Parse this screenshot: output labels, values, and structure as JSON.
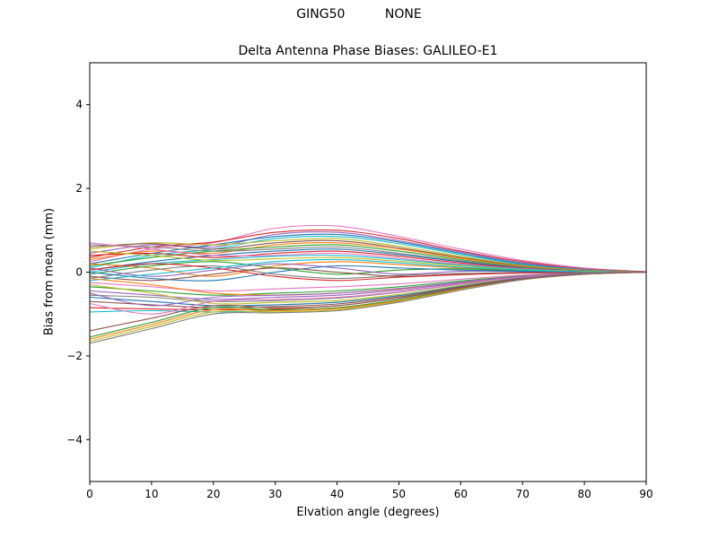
{
  "chart_data": {
    "type": "line",
    "title": "GING50          NONE",
    "subtitle": "Delta Antenna Phase Biases: GALILEO-E1",
    "xlabel": "Elvation angle (degrees)",
    "ylabel": "Bias from mean (mm)",
    "xlim": [
      0,
      90
    ],
    "ylim": [
      -5,
      5
    ],
    "x_ticks": [
      0,
      10,
      20,
      30,
      40,
      50,
      60,
      70,
      80,
      90
    ],
    "y_ticks": [
      -4,
      -2,
      0,
      2,
      4
    ],
    "grid": false,
    "legend": "none",
    "x": [
      0,
      10,
      20,
      30,
      40,
      50,
      60,
      70,
      80,
      90
    ],
    "series": [
      {
        "color": "#e377c2",
        "values": [
          0.25,
          0.55,
          0.7,
          1.05,
          1.1,
          0.85,
          0.55,
          0.28,
          0.1,
          0.01
        ]
      },
      {
        "color": "#d62728",
        "values": [
          0.35,
          0.6,
          0.72,
          0.95,
          1.0,
          0.8,
          0.5,
          0.25,
          0.08,
          0.01
        ]
      },
      {
        "color": "#9467bd",
        "values": [
          0.45,
          0.65,
          0.6,
          0.9,
          0.95,
          0.75,
          0.48,
          0.22,
          0.07,
          0.0
        ]
      },
      {
        "color": "#1f77b4",
        "values": [
          0.2,
          0.45,
          0.65,
          0.85,
          0.9,
          0.72,
          0.45,
          0.2,
          0.06,
          0.0
        ]
      },
      {
        "color": "#17becf",
        "values": [
          0.1,
          0.4,
          0.55,
          0.8,
          0.85,
          0.68,
          0.42,
          0.18,
          0.05,
          0.0
        ]
      },
      {
        "color": "#bcbd22",
        "values": [
          0.55,
          0.7,
          0.65,
          0.75,
          0.8,
          0.62,
          0.38,
          0.16,
          0.05,
          0.0
        ]
      },
      {
        "color": "#8c564b",
        "values": [
          0.6,
          0.68,
          0.55,
          0.7,
          0.75,
          0.58,
          0.35,
          0.15,
          0.04,
          0.0
        ]
      },
      {
        "color": "#ff7f0e",
        "values": [
          0.3,
          0.5,
          0.45,
          0.65,
          0.7,
          0.55,
          0.33,
          0.14,
          0.04,
          0.0
        ]
      },
      {
        "color": "#2ca02c",
        "values": [
          0.15,
          0.35,
          0.5,
          0.6,
          0.65,
          0.5,
          0.3,
          0.12,
          0.03,
          0.0
        ]
      },
      {
        "color": "#7f7f7f",
        "values": [
          0.65,
          0.6,
          0.5,
          0.55,
          0.6,
          0.45,
          0.27,
          0.11,
          0.03,
          0.0
        ]
      },
      {
        "color": "#1f77b4",
        "values": [
          0.05,
          0.25,
          0.4,
          0.5,
          0.55,
          0.42,
          0.25,
          0.1,
          0.03,
          0.0
        ]
      },
      {
        "color": "#d62728",
        "values": [
          0.4,
          0.45,
          0.35,
          0.45,
          0.5,
          0.38,
          0.22,
          0.09,
          0.02,
          0.0
        ]
      },
      {
        "color": "#e377c2",
        "values": [
          0.7,
          0.55,
          0.4,
          0.4,
          0.45,
          0.33,
          0.19,
          0.08,
          0.02,
          0.0
        ]
      },
      {
        "color": "#17becf",
        "values": [
          0.0,
          0.2,
          0.3,
          0.38,
          0.4,
          0.3,
          0.17,
          0.07,
          0.02,
          0.0
        ]
      },
      {
        "color": "#bcbd22",
        "values": [
          0.5,
          0.4,
          0.28,
          0.32,
          0.35,
          0.26,
          0.15,
          0.06,
          0.02,
          0.0
        ]
      },
      {
        "color": "#ff7f0e",
        "values": [
          0.2,
          0.1,
          -0.1,
          0.15,
          0.25,
          0.18,
          0.1,
          0.04,
          0.01,
          0.0
        ]
      },
      {
        "color": "#2ca02c",
        "values": [
          -0.05,
          0.15,
          0.25,
          0.1,
          -0.05,
          0.05,
          0.08,
          0.03,
          0.01,
          0.0
        ]
      },
      {
        "color": "#9467bd",
        "values": [
          0.1,
          -0.1,
          0.05,
          0.2,
          0.1,
          -0.05,
          0.02,
          0.01,
          0.0,
          0.0
        ]
      },
      {
        "color": "#7f7f7f",
        "values": [
          -0.15,
          0.05,
          0.15,
          -0.05,
          -0.15,
          -0.08,
          -0.03,
          -0.01,
          0.0,
          0.0
        ]
      },
      {
        "color": "#1f77b4",
        "values": [
          0.0,
          -0.15,
          -0.2,
          0.0,
          0.15,
          0.1,
          0.05,
          0.02,
          0.0,
          0.0
        ]
      },
      {
        "color": "#8c564b",
        "values": [
          -0.1,
          -0.2,
          -0.05,
          0.1,
          0.0,
          -0.1,
          -0.05,
          -0.02,
          -0.01,
          0.0
        ]
      },
      {
        "color": "#d62728",
        "values": [
          0.05,
          0.2,
          0.1,
          -0.1,
          -0.2,
          -0.12,
          -0.06,
          -0.02,
          -0.01,
          0.0
        ]
      },
      {
        "color": "#17becf",
        "values": [
          -0.2,
          -0.05,
          0.1,
          0.25,
          0.3,
          0.22,
          0.12,
          0.05,
          0.01,
          0.0
        ]
      },
      {
        "color": "#e377c2",
        "values": [
          -0.25,
          -0.35,
          -0.45,
          -0.4,
          -0.35,
          -0.28,
          -0.17,
          -0.07,
          -0.02,
          0.0
        ]
      },
      {
        "color": "#2ca02c",
        "values": [
          -0.35,
          -0.45,
          -0.55,
          -0.5,
          -0.45,
          -0.35,
          -0.21,
          -0.09,
          -0.02,
          0.0
        ]
      },
      {
        "color": "#ff7f0e",
        "values": [
          -0.15,
          -0.3,
          -0.5,
          -0.55,
          -0.5,
          -0.4,
          -0.24,
          -0.1,
          -0.03,
          0.0
        ]
      },
      {
        "color": "#9467bd",
        "values": [
          -0.45,
          -0.55,
          -0.65,
          -0.6,
          -0.55,
          -0.43,
          -0.26,
          -0.11,
          -0.03,
          0.0
        ]
      },
      {
        "color": "#7f7f7f",
        "values": [
          -0.55,
          -0.6,
          -0.7,
          -0.68,
          -0.62,
          -0.48,
          -0.29,
          -0.12,
          -0.03,
          0.0
        ]
      },
      {
        "color": "#bcbd22",
        "values": [
          -0.3,
          -0.5,
          -0.75,
          -0.72,
          -0.68,
          -0.53,
          -0.32,
          -0.13,
          -0.04,
          0.0
        ]
      },
      {
        "color": "#1f77b4",
        "values": [
          -0.6,
          -0.7,
          -0.8,
          -0.78,
          -0.72,
          -0.56,
          -0.34,
          -0.14,
          -0.04,
          0.0
        ]
      },
      {
        "color": "#8c564b",
        "values": [
          -0.7,
          -0.78,
          -0.85,
          -0.82,
          -0.76,
          -0.59,
          -0.36,
          -0.15,
          -0.04,
          0.0
        ]
      },
      {
        "color": "#d62728",
        "values": [
          -0.85,
          -0.88,
          -0.9,
          -0.88,
          -0.8,
          -0.62,
          -0.38,
          -0.16,
          -0.05,
          0.0
        ]
      },
      {
        "color": "#17becf",
        "values": [
          -0.95,
          -0.92,
          -0.95,
          -0.92,
          -0.85,
          -0.66,
          -0.4,
          -0.17,
          -0.05,
          0.0
        ]
      },
      {
        "color": "#2ca02c",
        "values": [
          -1.55,
          -1.2,
          -0.85,
          -0.9,
          -0.85,
          -0.66,
          -0.4,
          -0.17,
          -0.05,
          0.0
        ]
      },
      {
        "color": "#ff7f0e",
        "values": [
          -1.6,
          -1.25,
          -0.9,
          -0.92,
          -0.87,
          -0.68,
          -0.41,
          -0.17,
          -0.05,
          0.0
        ]
      },
      {
        "color": "#bcbd22",
        "values": [
          -1.65,
          -1.3,
          -0.95,
          -0.95,
          -0.9,
          -0.7,
          -0.42,
          -0.18,
          -0.05,
          0.0
        ]
      },
      {
        "color": "#7f7f7f",
        "values": [
          -1.7,
          -1.35,
          -1.0,
          -0.97,
          -0.92,
          -0.72,
          -0.43,
          -0.18,
          -0.05,
          0.0
        ]
      },
      {
        "color": "#e377c2",
        "values": [
          -0.75,
          -1.0,
          -0.7,
          -0.65,
          -0.6,
          -0.47,
          -0.28,
          -0.12,
          -0.03,
          0.0
        ]
      },
      {
        "color": "#9467bd",
        "values": [
          -0.5,
          -0.8,
          -0.6,
          -0.55,
          -0.5,
          -0.39,
          -0.24,
          -0.1,
          -0.03,
          0.0
        ]
      },
      {
        "color": "#8c564b",
        "values": [
          -1.4,
          -1.1,
          -0.8,
          -0.85,
          -0.8,
          -0.62,
          -0.38,
          -0.16,
          -0.04,
          0.0
        ]
      }
    ]
  }
}
